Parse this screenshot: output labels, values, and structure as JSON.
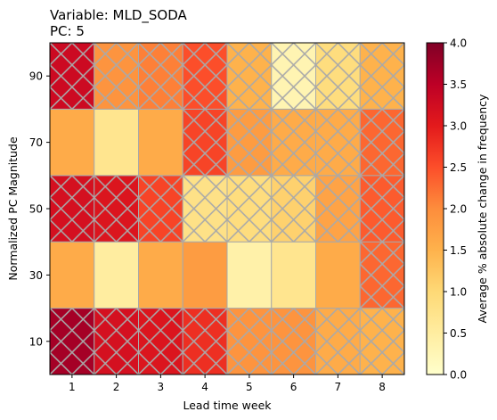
{
  "chart_data": {
    "type": "heatmap",
    "title_line1": "Variable: MLD_SODA",
    "title_line2": "PC: 5",
    "xlabel": "Lead time week",
    "ylabel": "Normalized PC Magnitude",
    "x_categories": [
      "1",
      "2",
      "3",
      "4",
      "5",
      "6",
      "7",
      "8"
    ],
    "y_categories": [
      "10",
      "30",
      "50",
      "70",
      "90"
    ],
    "values": [
      [
        3.7,
        3.2,
        3.1,
        2.8,
        1.9,
        1.9,
        1.6,
        1.5
      ],
      [
        1.6,
        0.5,
        1.6,
        1.8,
        0.4,
        0.7,
        1.6,
        2.3
      ],
      [
        3.2,
        3.1,
        2.6,
        0.8,
        0.9,
        1.1,
        1.7,
        2.4
      ],
      [
        1.6,
        0.7,
        1.6,
        2.6,
        1.8,
        1.6,
        1.6,
        2.3
      ],
      [
        3.3,
        1.9,
        2.1,
        2.5,
        1.5,
        0.3,
        0.9,
        1.5
      ]
    ],
    "hatched": [
      [
        true,
        true,
        true,
        true,
        true,
        true,
        true,
        true
      ],
      [
        false,
        false,
        false,
        false,
        false,
        false,
        false,
        true
      ],
      [
        true,
        true,
        true,
        true,
        true,
        true,
        true,
        true
      ],
      [
        false,
        false,
        false,
        true,
        true,
        true,
        true,
        true
      ],
      [
        true,
        true,
        true,
        true,
        true,
        true,
        true,
        true
      ]
    ],
    "colorbar": {
      "label": "Average % absolute change in frequency",
      "min": 0.0,
      "max": 4.0,
      "ticks": [
        "0.0",
        "0.5",
        "1.0",
        "1.5",
        "2.0",
        "2.5",
        "3.0",
        "3.5",
        "4.0"
      ],
      "colormap": "YlOrRd"
    },
    "grid": false,
    "hatch_color": "#a9a9a9"
  }
}
